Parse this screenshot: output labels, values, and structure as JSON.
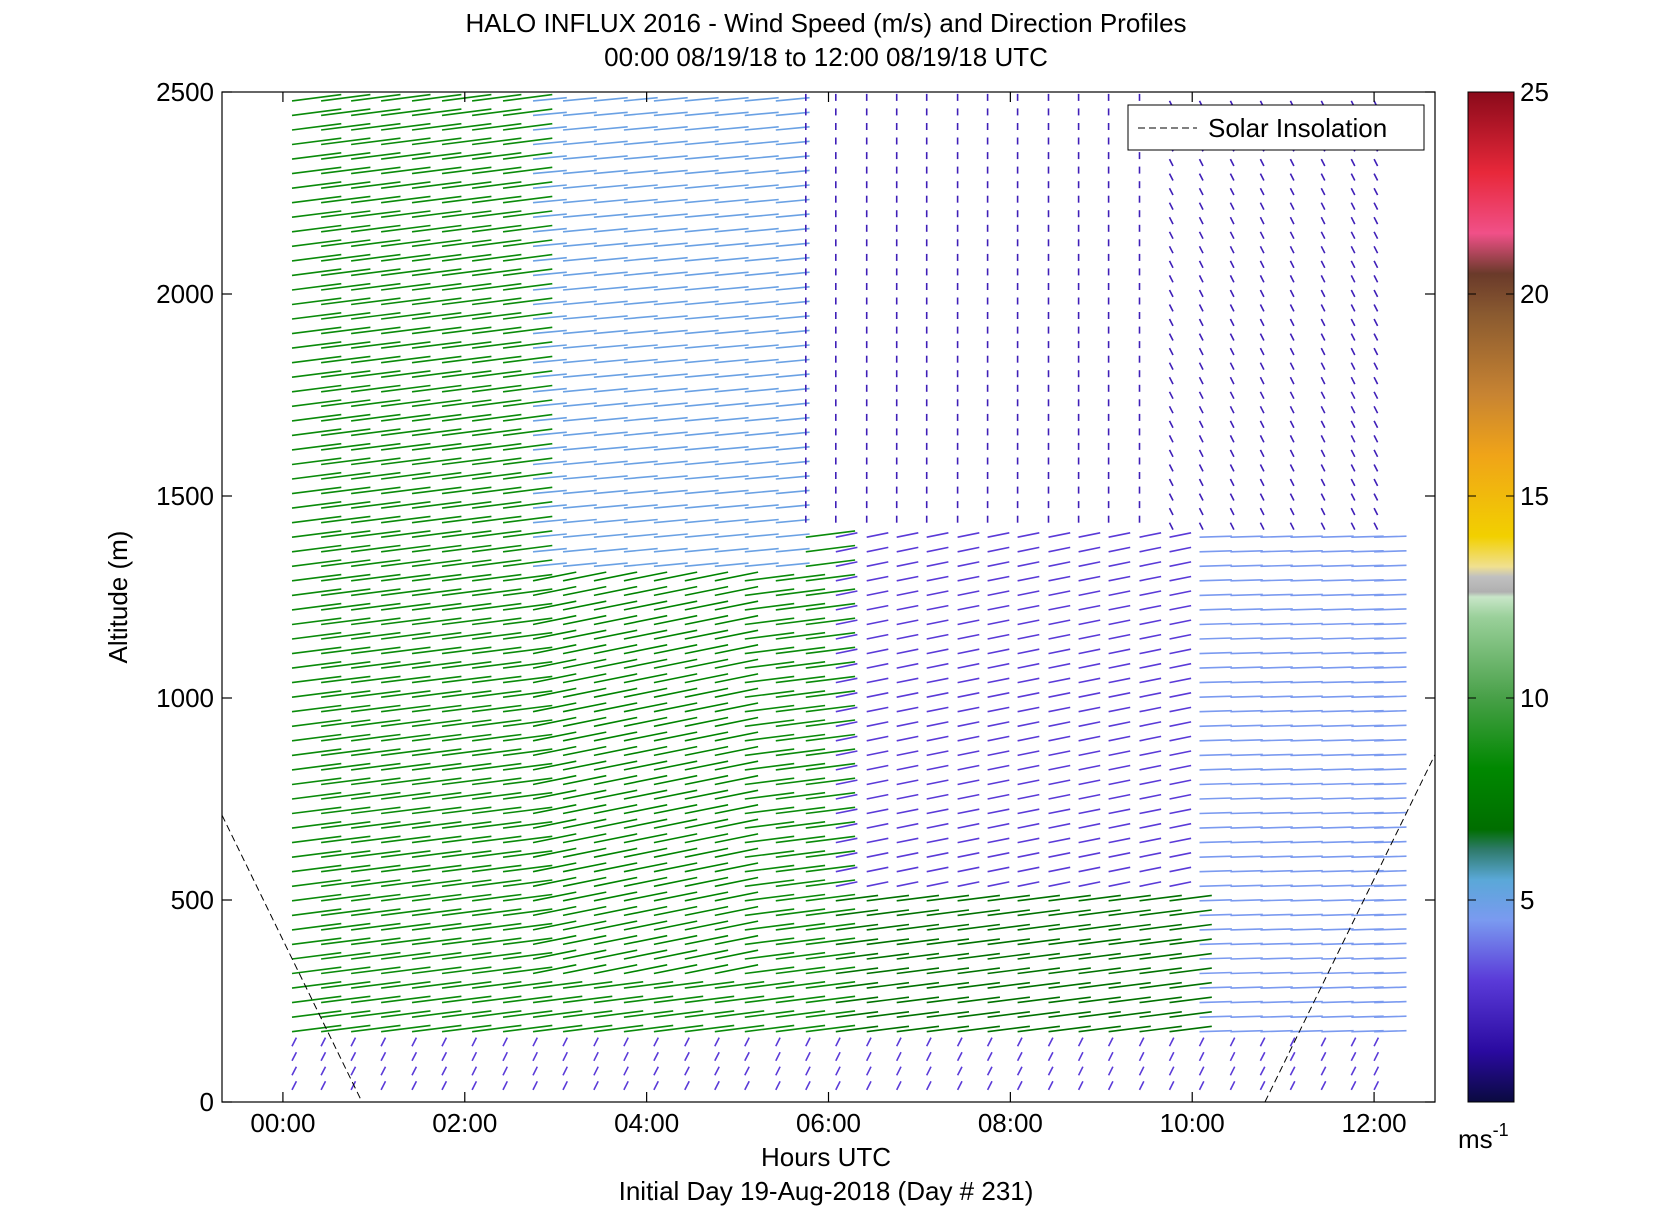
{
  "chart_data": {
    "type": "wind-barb-profile",
    "title": "HALO INFLUX 2016 - Wind Speed (m/s) and Direction Profiles",
    "subtitle": "00:00 08/19/18 to 12:00 08/19/18  UTC",
    "xlabel": "Hours UTC",
    "ylabel": "Altitude (m)",
    "footer": "Initial Day 19-Aug-2018 (Day # 231)",
    "xlim": [
      -0.67,
      12.67
    ],
    "ylim": [
      0,
      2500
    ],
    "x_ticks": [
      {
        "value": 0,
        "label": "00:00"
      },
      {
        "value": 2,
        "label": "02:00"
      },
      {
        "value": 4,
        "label": "04:00"
      },
      {
        "value": 6,
        "label": "06:00"
      },
      {
        "value": 8,
        "label": "08:00"
      },
      {
        "value": 10,
        "label": "10:00"
      },
      {
        "value": 12,
        "label": "12:00"
      }
    ],
    "y_ticks": [
      {
        "value": 0,
        "label": "0"
      },
      {
        "value": 500,
        "label": "500"
      },
      {
        "value": 1000,
        "label": "1000"
      },
      {
        "value": 1500,
        "label": "1500"
      },
      {
        "value": 2000,
        "label": "2000"
      },
      {
        "value": 2500,
        "label": "2500"
      }
    ],
    "legend": {
      "label": "Solar Insolation",
      "position": "top-right",
      "style": "dashed"
    },
    "solar_insolation": [
      {
        "x": [
          -0.67,
          0.87
        ],
        "y": [
          710,
          0
        ]
      },
      {
        "x": [
          10.8,
          12.67
        ],
        "y": [
          0,
          860
        ]
      }
    ],
    "colorbar": {
      "min": 0,
      "max": 25,
      "ticks": [
        {
          "value": 5,
          "label": "5"
        },
        {
          "value": 10,
          "label": "10"
        },
        {
          "value": 15,
          "label": "15"
        },
        {
          "value": 20,
          "label": "20"
        },
        {
          "value": 25,
          "label": "25"
        }
      ],
      "unit_label": "ms",
      "unit_exponent": "-1"
    },
    "grid": false,
    "profile_times_hours": [
      0.1,
      0.42,
      0.75,
      1.08,
      1.42,
      1.75,
      2.08,
      2.42,
      2.75,
      3.08,
      3.42,
      3.75,
      4.08,
      4.42,
      4.75,
      5.08,
      5.42,
      5.75,
      6.08,
      6.42,
      6.75,
      7.08,
      7.42,
      7.75,
      8.08,
      8.42,
      8.75,
      9.08,
      9.42,
      9.75,
      10.08,
      10.42,
      10.75,
      11.08,
      11.42,
      11.75,
      12.0
    ],
    "wind_regions": [
      {
        "x": [
          0,
          2.5
        ],
        "y": [
          0,
          2500
        ],
        "speed_ms": 8.5,
        "direction_deg": 250
      },
      {
        "x": [
          2.5,
          4.8
        ],
        "y": [
          300,
          1300
        ],
        "speed_ms": 8,
        "direction_deg": 240
      },
      {
        "x": [
          2.5,
          5.5
        ],
        "y": [
          1300,
          2500
        ],
        "speed_ms": 5,
        "direction_deg": 255
      },
      {
        "x": [
          5.5,
          9.5
        ],
        "y": [
          1400,
          2500
        ],
        "speed_ms": 2,
        "direction_deg": 180
      },
      {
        "x": [
          6.0,
          10.5
        ],
        "y": [
          500,
          1400
        ],
        "speed_ms": 3,
        "direction_deg": 240
      },
      {
        "x": [
          6.0,
          10.0
        ],
        "y": [
          150,
          500
        ],
        "speed_ms": 7,
        "direction_deg": 250
      },
      {
        "x": [
          9.5,
          12.0
        ],
        "y": [
          1400,
          2500
        ],
        "speed_ms": 2,
        "direction_deg": 350
      },
      {
        "x": [
          10.0,
          12.0
        ],
        "y": [
          150,
          1400
        ],
        "speed_ms": 4.5,
        "direction_deg": 265
      },
      {
        "x": [
          0,
          12.0
        ],
        "y": [
          0,
          150
        ],
        "speed_ms": 3,
        "direction_deg": 190
      }
    ]
  },
  "colors": {
    "colorbar_stops": [
      "#0a0a40",
      "#3a0ab0",
      "#6a52e0",
      "#7ea8f0",
      "#3c8aa0",
      "#2e7a55",
      "#007a00",
      "#3c9a3c",
      "#88c88c",
      "#c4e4c4",
      "#b8b8b8",
      "#f0e080",
      "#f2cc00",
      "#f0a010",
      "#b87838",
      "#7a4a28",
      "#f04a7a",
      "#c81e2a",
      "#8a0a1a"
    ]
  }
}
